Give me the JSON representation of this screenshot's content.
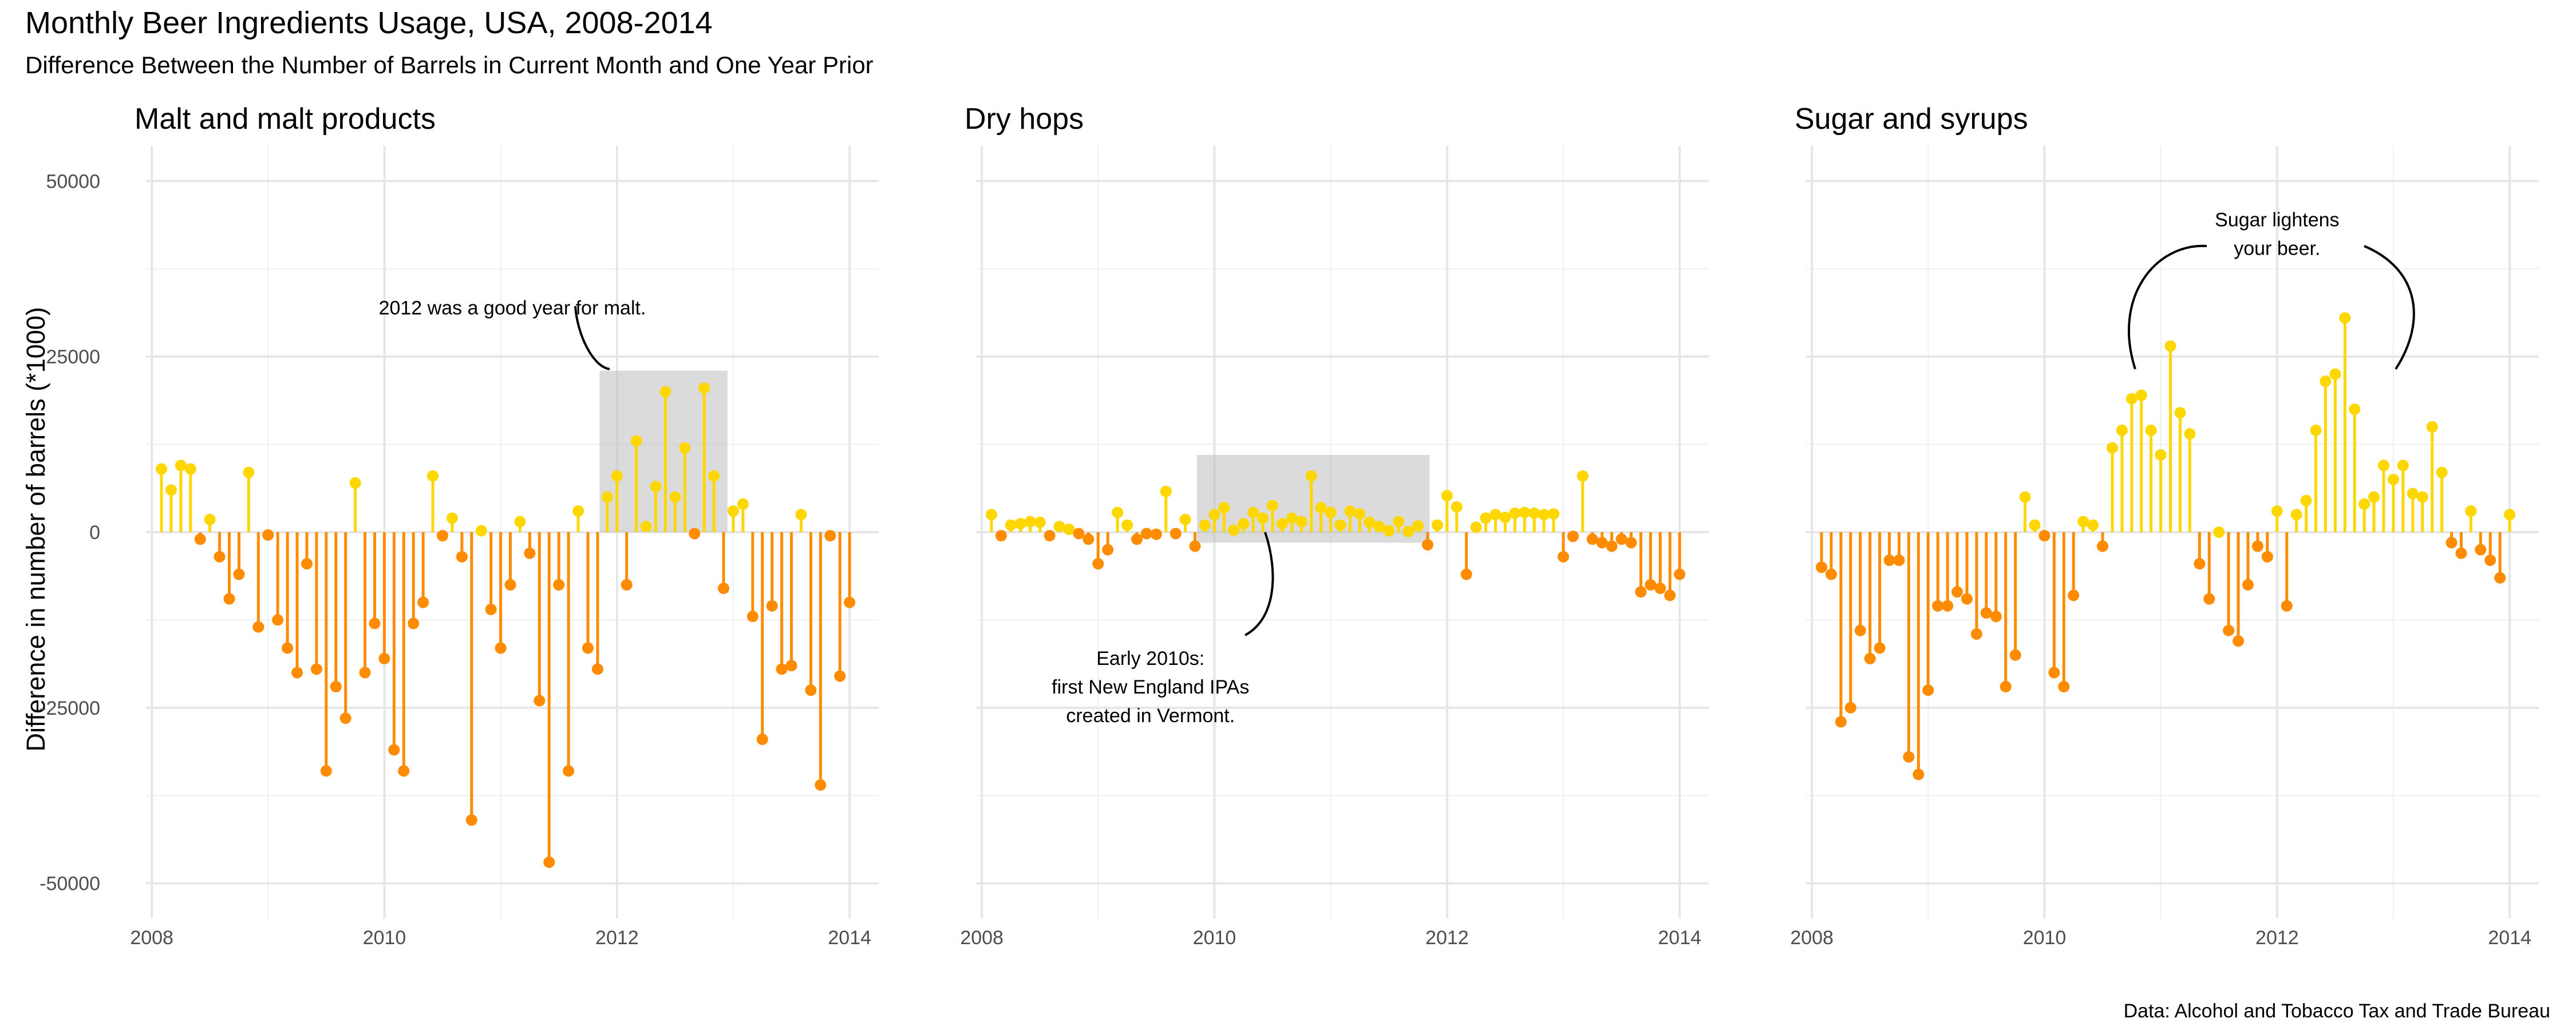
{
  "title": "Monthly Beer Ingredients Usage, USA, 2008-2014",
  "subtitle": "Difference Between the Number of Barrels in Current Month and One Year Prior",
  "caption": "Data: Alcohol and Tobacco Tax and Trade Bureau",
  "colors": {
    "positive": "#FFD700",
    "negative": "#FF8C00",
    "highlight": "#d9d9d9",
    "grid": "#e6e6e6"
  },
  "chart_data": {
    "type": "lollipop",
    "ylabel": "Difference in number of barrels (*1000)",
    "ylim": [
      -55000,
      55000
    ],
    "yticks": [
      50000,
      25000,
      0,
      -25000,
      -50000
    ],
    "yticklabels": [
      "50000",
      "25000",
      "0",
      "-25000",
      "-50000"
    ],
    "xlim": [
      2007.95,
      2014.25
    ],
    "xticks": [
      2008,
      2010,
      2012,
      2014
    ],
    "xticklabels": [
      "2008",
      "2010",
      "2012",
      "2014"
    ],
    "grid": true,
    "panels": [
      {
        "title": "Malt and malt products",
        "x_start": 2008.083,
        "values": [
          9000,
          6000,
          9500,
          9000,
          -1000,
          1800,
          -3500,
          -9500,
          -6000,
          8500,
          -13500,
          -400,
          -12500,
          -16500,
          -20000,
          -4500,
          -19500,
          -34000,
          -22000,
          -26500,
          7000,
          -20000,
          -13000,
          -18000,
          -31000,
          -34000,
          -13000,
          -10000,
          8000,
          -500,
          2000,
          -3500,
          -41000,
          200,
          -11000,
          -16500,
          -7500,
          1500,
          -3000,
          -24000,
          -47000,
          -7500,
          -34000,
          3000,
          -16500,
          -19500,
          5000,
          8000,
          -7500,
          13000,
          800,
          6500,
          20000,
          5000,
          12000,
          -200,
          20500,
          8000,
          -8000,
          3000,
          4000,
          -12000,
          -29500,
          -10500,
          -19500,
          -19000,
          2500,
          -22500,
          -36000,
          -500,
          -20500,
          -10000
        ],
        "highlight": {
          "x": [
            2011.85,
            2012.95
          ],
          "y": [
            0,
            23000
          ]
        },
        "annotation": {
          "text": [
            "2012 was a good year for malt."
          ],
          "x": 2011.1,
          "y": 32000
        }
      },
      {
        "title": "Dry hops",
        "x_start": 2008.083,
        "values": [
          2500,
          -500,
          1000,
          1200,
          1500,
          1400,
          -500,
          800,
          400,
          -200,
          -1000,
          -4500,
          -2500,
          2800,
          1000,
          -1000,
          -200,
          -300,
          5800,
          -200,
          1800,
          -2000,
          1000,
          2500,
          3500,
          300,
          1200,
          2800,
          2000,
          3800,
          1200,
          2000,
          1500,
          8000,
          3500,
          2800,
          1000,
          3000,
          2600,
          1400,
          800,
          200,
          1500,
          100,
          900,
          -1800,
          1000,
          5200,
          3600,
          -6000,
          700,
          2000,
          2500,
          2100,
          2700,
          2800,
          2700,
          2500,
          2600,
          -3500,
          -600,
          8000,
          -1000,
          -1500,
          -2000,
          -1000,
          -1500,
          -8500,
          -7500,
          -8000,
          -9000,
          -6000
        ],
        "highlight": {
          "x": [
            2009.85,
            2011.85
          ],
          "y": [
            -1500,
            11000
          ]
        },
        "annotation": {
          "text": [
            "Early 2010s:",
            "first New England IPAs",
            "created in Vermont."
          ],
          "x": 2009.45,
          "y": -22000
        }
      },
      {
        "title": "Sugar and syrups",
        "x_start": 2008.083,
        "values": [
          -5000,
          -6000,
          -27000,
          -25000,
          -14000,
          -18000,
          -16500,
          -4000,
          -4000,
          -32000,
          -34500,
          -22500,
          -10500,
          -10500,
          -8500,
          -9500,
          -14500,
          -11500,
          -12000,
          -22000,
          -17500,
          5000,
          1000,
          -500,
          -20000,
          -22000,
          -9000,
          1500,
          1000,
          -2000,
          12000,
          14500,
          19000,
          19500,
          14500,
          11000,
          26500,
          17000,
          14000,
          -4500,
          -9500,
          0,
          -14000,
          -15500,
          -7500,
          -2000,
          -3500,
          3000,
          -10500,
          2500,
          4500,
          14500,
          21500,
          22500,
          30500,
          17500,
          4000,
          5000,
          9500,
          7500,
          9500,
          5500,
          5000,
          15000,
          8500,
          -1500,
          -3000,
          3000,
          -2500,
          -4000,
          -6500,
          2500
        ],
        "annotation": {
          "text": [
            "Sugar lightens",
            "your beer."
          ],
          "x": 2012.0,
          "y": 42500
        }
      }
    ]
  }
}
